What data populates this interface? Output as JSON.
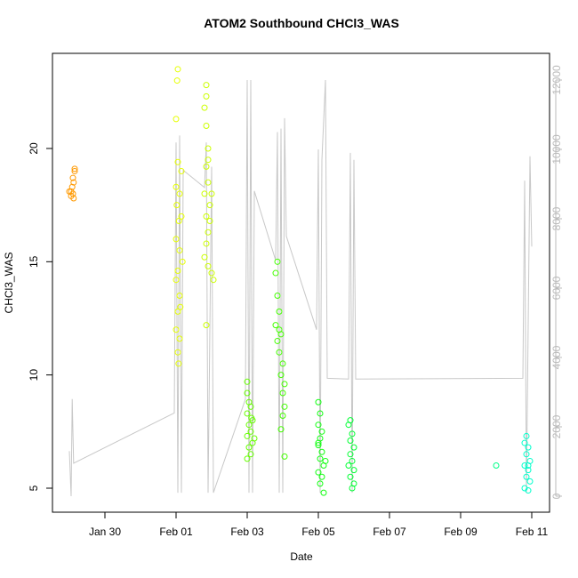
{
  "chart_data": {
    "type": "scatter",
    "title": "ATOM2 Southbound CHCl3_WAS",
    "x_label": "Date",
    "y_label": "CHCl3_WAS",
    "xlim": [
      28.525,
      42.5
    ],
    "xticks": [
      {
        "value": 30,
        "label": "Jan 30"
      },
      {
        "value": 32,
        "label": "Feb 01"
      },
      {
        "value": 34,
        "label": "Feb 03"
      },
      {
        "value": 36,
        "label": "Feb 05"
      },
      {
        "value": 38,
        "label": "Feb 07"
      },
      {
        "value": 40,
        "label": "Feb 09"
      },
      {
        "value": 42,
        "label": "Feb 11"
      }
    ],
    "ylim": [
      3.94,
      24.2
    ],
    "yticks": [
      5,
      10,
      15,
      20
    ],
    "y2lim": [
      -462,
      12769
    ],
    "y2ticks": [
      0,
      2000,
      4000,
      6000,
      8000,
      10000,
      12000
    ],
    "y2_color": "#bbbbbb",
    "series": [
      {
        "type": "line",
        "axis": "y2",
        "color": "#c8c8c8",
        "x": [
          29.0,
          29.05,
          29.08,
          29.12,
          31.95,
          32.0,
          32.05,
          32.1,
          32.15,
          32.2,
          32.8,
          32.85,
          32.9,
          33.0,
          33.05,
          33.95,
          34.0,
          34.05,
          34.1,
          34.15,
          34.2,
          34.8,
          34.85,
          34.9,
          34.95,
          35.0,
          35.05,
          35.1,
          35.95,
          36.0,
          36.05,
          36.1,
          36.2,
          36.25,
          36.85,
          36.9,
          36.95,
          37.0,
          37.05,
          41.75,
          41.8,
          41.85,
          41.95,
          42.0
        ],
        "values": [
          1300,
          0,
          2800,
          950,
          2400,
          10200,
          100,
          10400,
          100,
          9400,
          8900,
          10200,
          100,
          9500,
          100,
          2800,
          12000,
          100,
          12000,
          100,
          8800,
          6800,
          10500,
          100,
          10600,
          100,
          10900,
          7500,
          4800,
          10000,
          100,
          9700,
          12000,
          3400,
          3380,
          9900,
          100,
          9700,
          3380,
          3400,
          9100,
          100,
          9800,
          7200
        ]
      },
      {
        "color": "#ff9900",
        "x": [
          29.05,
          29.08,
          29.1,
          29.12,
          29.05,
          29.1,
          29.15,
          29.15,
          29.0,
          29.12
        ],
        "values": [
          18.1,
          18.3,
          18.0,
          17.8,
          17.9,
          18.7,
          19.0,
          19.1,
          18.1,
          18.5
        ]
      },
      {
        "color": "#e6ff00",
        "x": [
          32.05,
          32.03,
          32.0,
          32.05,
          32.0,
          32.1,
          32.02,
          32.08,
          32.0,
          32.1,
          32.05,
          32.0,
          32.1,
          32.05,
          32.0,
          32.1,
          32.05,
          32.07,
          32.15,
          32.15,
          32.18,
          32.12
        ],
        "values": [
          23.5,
          23.0,
          21.3,
          19.4,
          18.3,
          18.0,
          17.5,
          16.8,
          16.0,
          15.5,
          14.6,
          14.2,
          13.5,
          12.8,
          12.0,
          11.6,
          11.0,
          10.5,
          19.0,
          17.0,
          15.0,
          13.0
        ]
      },
      {
        "color": "#ccff00",
        "x": [
          32.85,
          32.85,
          32.8,
          32.85,
          32.9,
          32.85,
          32.9,
          32.8,
          32.95,
          32.85,
          32.9,
          32.85,
          32.8,
          32.9,
          33.0,
          33.05,
          32.85,
          32.95,
          33.0,
          32.9
        ],
        "values": [
          22.8,
          22.3,
          21.8,
          21.0,
          20.0,
          19.2,
          18.5,
          18.0,
          17.5,
          17.0,
          16.3,
          15.8,
          15.2,
          14.8,
          14.5,
          14.2,
          12.2,
          16.8,
          18.0,
          19.5
        ]
      },
      {
        "color": "#66ff00",
        "x": [
          34.0,
          34.0,
          34.05,
          34.1,
          34.0,
          34.15,
          34.05,
          34.1,
          34.0,
          34.15,
          34.05,
          34.1,
          34.0,
          34.2,
          34.12
        ],
        "values": [
          9.7,
          9.2,
          8.8,
          8.6,
          8.3,
          8.0,
          7.8,
          7.5,
          7.3,
          7.0,
          6.8,
          6.5,
          6.3,
          7.2,
          8.1
        ]
      },
      {
        "color": "#44ff00",
        "x": [
          34.85,
          34.8,
          34.85,
          34.9,
          34.8,
          34.95,
          34.85,
          34.9,
          35.0,
          34.95,
          35.05,
          35.0,
          35.05,
          35.0,
          34.95,
          35.05,
          34.9
        ],
        "values": [
          15.0,
          14.5,
          13.5,
          12.8,
          12.2,
          11.8,
          11.5,
          11.0,
          10.5,
          10.0,
          9.6,
          9.2,
          8.6,
          8.2,
          7.6,
          6.4,
          12.0
        ]
      },
      {
        "color": "#11ff11",
        "x": [
          36.0,
          36.05,
          36.0,
          36.1,
          36.05,
          36.0,
          36.1,
          36.05,
          36.15,
          36.0,
          36.1,
          36.05,
          36.15,
          36.2,
          36.0
        ],
        "values": [
          8.8,
          8.3,
          7.8,
          7.5,
          7.2,
          6.9,
          6.6,
          6.3,
          6.0,
          5.7,
          5.5,
          5.2,
          4.8,
          6.2,
          7.0
        ]
      },
      {
        "color": "#00ff33",
        "x": [
          36.9,
          36.85,
          36.95,
          36.9,
          37.0,
          36.9,
          36.95,
          36.85,
          37.0,
          36.9,
          37.0,
          36.95
        ],
        "values": [
          8.0,
          7.8,
          7.4,
          7.1,
          6.8,
          6.5,
          6.2,
          6.0,
          5.8,
          5.5,
          5.2,
          5.0
        ]
      },
      {
        "color": "#00ff88",
        "x": [
          41.0
        ],
        "values": [
          6.0
        ]
      },
      {
        "color": "#00ffcc",
        "x": [
          41.85,
          41.8,
          41.9,
          41.85,
          41.95,
          41.8,
          41.9,
          41.85,
          41.95,
          41.8,
          41.9,
          41.9
        ],
        "values": [
          7.3,
          7.0,
          6.8,
          6.5,
          6.2,
          6.0,
          5.8,
          5.5,
          5.3,
          5.0,
          4.9,
          6.0
        ]
      }
    ]
  }
}
